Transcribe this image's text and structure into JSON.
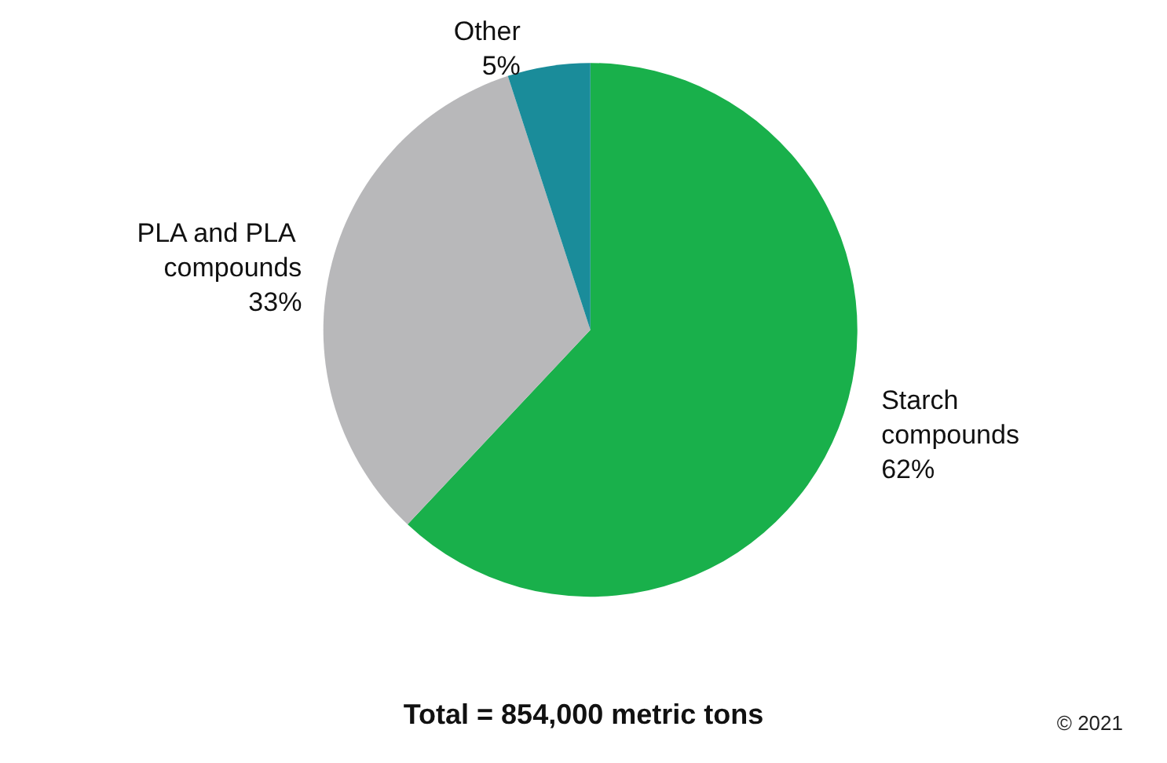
{
  "chart_data": {
    "type": "pie",
    "categories": [
      "Starch compounds",
      "PLA and PLA compounds",
      "Other"
    ],
    "values": [
      62,
      33,
      5
    ],
    "colors": [
      "#19b04b",
      "#b8b8ba",
      "#1a8c9a"
    ],
    "value_labels": [
      "62%",
      "33%",
      "5%"
    ],
    "annotations": [
      "Total = 854,000 metric tons",
      "© 2021"
    ]
  }
}
